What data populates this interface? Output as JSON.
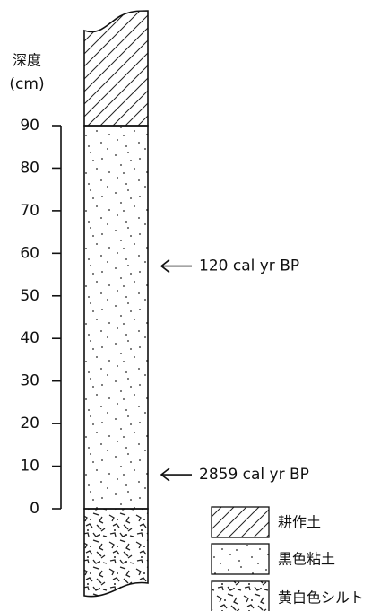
{
  "axis": {
    "title": "深度",
    "unit": "(cm)",
    "range": [
      0,
      90
    ],
    "ticks": [
      0,
      10,
      20,
      30,
      40,
      50,
      60,
      70,
      80,
      90
    ]
  },
  "annotations": [
    {
      "label": "120 cal yr BP",
      "depth": 57
    },
    {
      "label": "2859 cal yr BP",
      "depth": 8
    }
  ],
  "legend": [
    "耕作土",
    "黒色粘土",
    "黄白色シルト"
  ]
}
